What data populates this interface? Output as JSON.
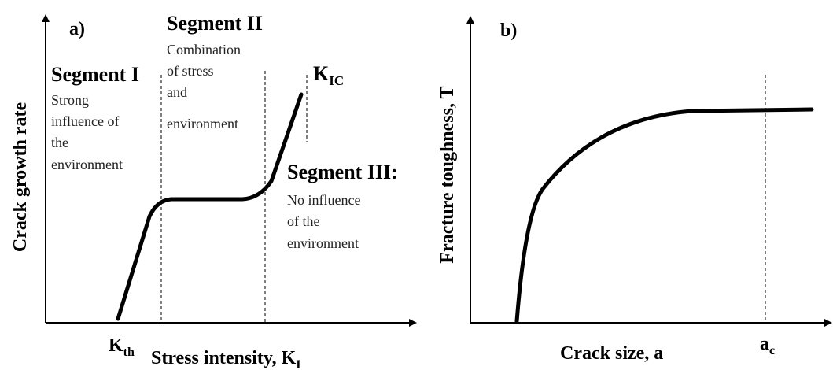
{
  "panel_a": {
    "label": "a)",
    "y_axis_label": "Crack growth rate",
    "x_axis_label": {
      "base": "Stress intensity, K",
      "sub": "I"
    },
    "threshold": {
      "base": "K",
      "sub": "th"
    },
    "critical": {
      "base": "K",
      "sub": "IC"
    },
    "segments": [
      {
        "title": "Segment I",
        "lines": [
          "Strong",
          "influence of",
          "the",
          "environment"
        ]
      },
      {
        "title": "Segment II",
        "lines": [
          "Combination",
          "of stress",
          "and",
          "environment"
        ]
      },
      {
        "title": "Segment III:",
        "lines": [
          "No influence",
          "of the",
          "environment"
        ]
      }
    ]
  },
  "panel_b": {
    "label": "b)",
    "y_axis_label": "Fracture toughness, T",
    "x_axis_label": "Crack size, a",
    "critical": {
      "base": "a",
      "sub": "c"
    }
  }
}
